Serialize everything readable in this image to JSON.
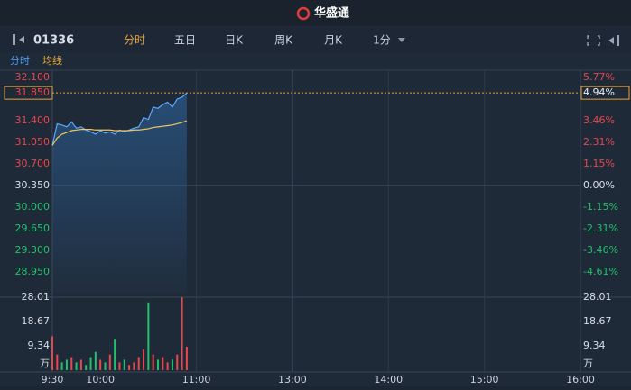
{
  "header": {
    "logo": "华盛通"
  },
  "toolbar": {
    "code": "01336",
    "tabs": [
      "分时",
      "五日",
      "日K",
      "周K",
      "月K"
    ],
    "period": "1分"
  },
  "legend": {
    "line": "分时",
    "avg": "均线"
  },
  "chart_data": {
    "type": "line",
    "x": [
      "9:30",
      "9:33",
      "9:36",
      "9:39",
      "9:42",
      "9:45",
      "9:48",
      "9:51",
      "9:54",
      "9:57",
      "10:00",
      "10:03",
      "10:06",
      "10:09",
      "10:12",
      "10:15",
      "10:18",
      "10:21",
      "10:24",
      "10:27",
      "10:30",
      "10:33",
      "10:36",
      "10:39",
      "10:42",
      "10:45",
      "10:48",
      "10:51",
      "10:54"
    ],
    "xlim": [
      "9:30",
      "16:00"
    ],
    "xticks": [
      "9:30",
      "10:00",
      "11:00",
      "13:00",
      "14:00",
      "15:00",
      "16:00"
    ],
    "series": [
      {
        "name": "分时",
        "color": "#5aa9ff",
        "values": [
          31.0,
          31.35,
          31.33,
          31.3,
          31.38,
          31.28,
          31.3,
          31.25,
          31.22,
          31.18,
          31.24,
          31.2,
          31.22,
          31.18,
          31.25,
          31.22,
          31.25,
          31.28,
          31.3,
          31.45,
          31.42,
          31.62,
          31.6,
          31.66,
          31.7,
          31.62,
          31.75,
          31.78,
          31.85
        ]
      },
      {
        "name": "均线",
        "color": "#f0c75e",
        "values": [
          31.0,
          31.12,
          31.18,
          31.21,
          31.24,
          31.25,
          31.26,
          31.26,
          31.26,
          31.25,
          31.25,
          31.25,
          31.25,
          31.24,
          31.24,
          31.24,
          31.24,
          31.25,
          31.25,
          31.26,
          31.27,
          31.29,
          31.3,
          31.31,
          31.32,
          31.33,
          31.35,
          31.37,
          31.4
        ]
      }
    ],
    "ylim": [
      28.6,
      32.1
    ],
    "yticks": [
      {
        "value": 32.1,
        "label": "32.100"
      },
      {
        "value": 31.4,
        "label": "31.400"
      },
      {
        "value": 31.05,
        "label": "31.050"
      },
      {
        "value": 30.7,
        "label": "30.700"
      },
      {
        "value": 30.35,
        "label": "30.350"
      },
      {
        "value": 30.0,
        "label": "30.000"
      },
      {
        "value": 29.65,
        "label": "29.650"
      },
      {
        "value": 29.3,
        "label": "29.300"
      },
      {
        "value": 28.95,
        "label": "28.950"
      }
    ],
    "y2lim": [
      -5.77,
      5.77
    ],
    "y2ticks": [
      {
        "value": 5.77,
        "label": "5.77%"
      },
      {
        "value": 3.46,
        "label": "3.46%"
      },
      {
        "value": 2.31,
        "label": "2.31%"
      },
      {
        "value": 1.15,
        "label": "1.15%"
      },
      {
        "value": 0,
        "label": "0.00%"
      },
      {
        "value": -1.15,
        "label": "-1.15%"
      },
      {
        "value": -2.31,
        "label": "-2.31%"
      },
      {
        "value": -3.46,
        "label": "-3.46%"
      },
      {
        "value": -4.61,
        "label": "-4.61%"
      }
    ],
    "last_price": {
      "value": 31.85,
      "label": "31.850"
    },
    "last_change": {
      "value": 4.94,
      "label": "4.94%"
    },
    "volume": {
      "values": [
        13,
        6,
        3,
        4,
        5,
        3,
        4,
        2,
        5,
        7,
        4,
        3,
        6,
        12,
        3,
        4,
        2,
        3,
        5,
        8,
        26,
        6,
        4,
        5,
        3,
        4,
        6,
        28,
        9
      ],
      "ylim": [
        0,
        28.01
      ],
      "yticks": [
        28.01,
        18.67,
        9.34
      ],
      "unit": "万"
    },
    "up_color": "#e8474b",
    "down_color": "#22c06e"
  }
}
